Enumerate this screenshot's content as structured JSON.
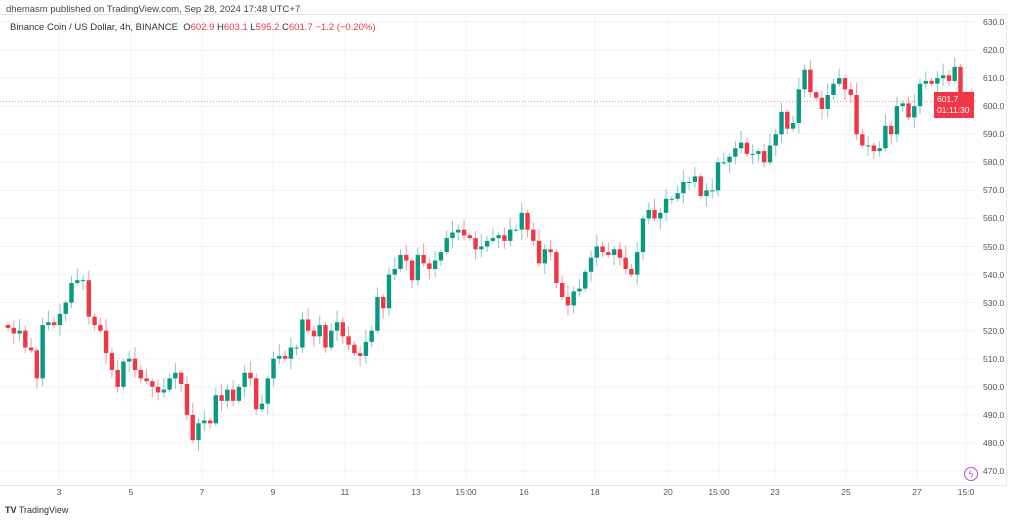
{
  "header": {
    "published": "dhemasm published on TradingView.com, Sep 28, 2024 17:48 UTC+7"
  },
  "legend": {
    "symbol": "Binance Coin / US Dollar, 4h, BINANCE",
    "o_label": "O",
    "o": "602.9",
    "h_label": "H",
    "h": "603.1",
    "l_label": "L",
    "l": "595.2",
    "c_label": "C",
    "c": "601.7",
    "change": "−1.2 (−0.20%)"
  },
  "price_tag": {
    "price": "601.7",
    "countdown": "01:11:30"
  },
  "footer": {
    "brand": "TradingView"
  },
  "colors": {
    "up": "#089981",
    "down": "#f23645",
    "grid": "#f0f3fa"
  },
  "chart_data": {
    "type": "candlestick",
    "title": "Binance Coin / US Dollar, 4h, BINANCE",
    "ylim": [
      465,
      633
    ],
    "y_ticks": [
      "630.0",
      "620.0",
      "610.0",
      "600.0",
      "590.0",
      "580.0",
      "570.0",
      "560.0",
      "550.0",
      "540.0",
      "530.0",
      "520.0",
      "510.0",
      "500.0",
      "490.0",
      "480.0",
      "470.0"
    ],
    "x_ticks": [
      "3",
      "5",
      "7",
      "9",
      "11",
      "13",
      "15:00",
      "16",
      "18",
      "20",
      "15:00",
      "23",
      "25",
      "27",
      "15:0"
    ],
    "last_price": 601.7,
    "closes": [
      521,
      519,
      520,
      514,
      513,
      503,
      522,
      523,
      522,
      526,
      530,
      537,
      538,
      538,
      525,
      522,
      520,
      512,
      506,
      500,
      509,
      510,
      506,
      503,
      502,
      500,
      498,
      499,
      503,
      505,
      501,
      490,
      481,
      487,
      488,
      487,
      497,
      495,
      499,
      495,
      500,
      505,
      503,
      492,
      494,
      503,
      510,
      511,
      510,
      514,
      514,
      524,
      520,
      518,
      522,
      514,
      520,
      523,
      518,
      515,
      512,
      511,
      516,
      520,
      532,
      528,
      540,
      542,
      547,
      545,
      538,
      547,
      544,
      542,
      545,
      548,
      553,
      555,
      556,
      554,
      553,
      549,
      550,
      552,
      553,
      554,
      552,
      556,
      556,
      562,
      556,
      552,
      544,
      549,
      548,
      537,
      532,
      529,
      534,
      535,
      541,
      546,
      550,
      548,
      547,
      549,
      546,
      542,
      540,
      548,
      560,
      563,
      560,
      562,
      567,
      567,
      569,
      573,
      573,
      575,
      568,
      570,
      570,
      580,
      580,
      582,
      585,
      587,
      583,
      583,
      584,
      580,
      586,
      590,
      598,
      592,
      594,
      606,
      613,
      605,
      603,
      599,
      604,
      608,
      610,
      606,
      604,
      590,
      586,
      586,
      584,
      585,
      593,
      590,
      600,
      601,
      596,
      600,
      608,
      609,
      608,
      610,
      611,
      609,
      614,
      603,
      602,
      601.7
    ]
  }
}
